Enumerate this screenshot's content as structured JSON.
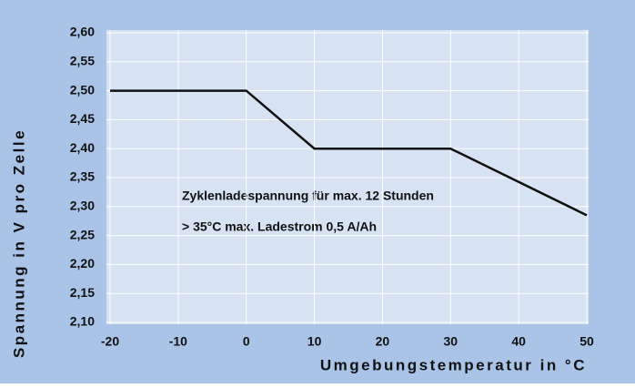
{
  "chart_data": {
    "type": "line",
    "x": [
      -20,
      0,
      10,
      30,
      50
    ],
    "series": [
      {
        "color": "#111111",
        "values": [
          2.5,
          2.5,
          2.4,
          2.4,
          2.285
        ]
      }
    ],
    "xlim": [
      -20,
      50
    ],
    "xticks": [
      -20,
      -10,
      0,
      10,
      20,
      30,
      40,
      50
    ],
    "ylim": [
      2.1,
      2.6
    ],
    "yticks": [
      {
        "value": 2.1,
        "label": "2,10"
      },
      {
        "value": 2.15,
        "label": "2,15"
      },
      {
        "value": 2.2,
        "label": "2,20"
      },
      {
        "value": 2.25,
        "label": "2,25"
      },
      {
        "value": 2.3,
        "label": "2,30"
      },
      {
        "value": 2.35,
        "label": "2,35"
      },
      {
        "value": 2.4,
        "label": "2,40"
      },
      {
        "value": 2.45,
        "label": "2,45"
      },
      {
        "value": 2.5,
        "label": "2,50"
      },
      {
        "value": 2.55,
        "label": "2,55"
      },
      {
        "value": 2.6,
        "label": "2,60"
      }
    ],
    "xlabel": "Umgebungstemperatur in °C",
    "ylabel": "Spannung in V pro Zelle",
    "annotations": [
      "Zyklenladespannung für max. 12 Stunden",
      "> 35°C max. Ladestrom 0,5 A/Ah"
    ],
    "grid": true
  }
}
